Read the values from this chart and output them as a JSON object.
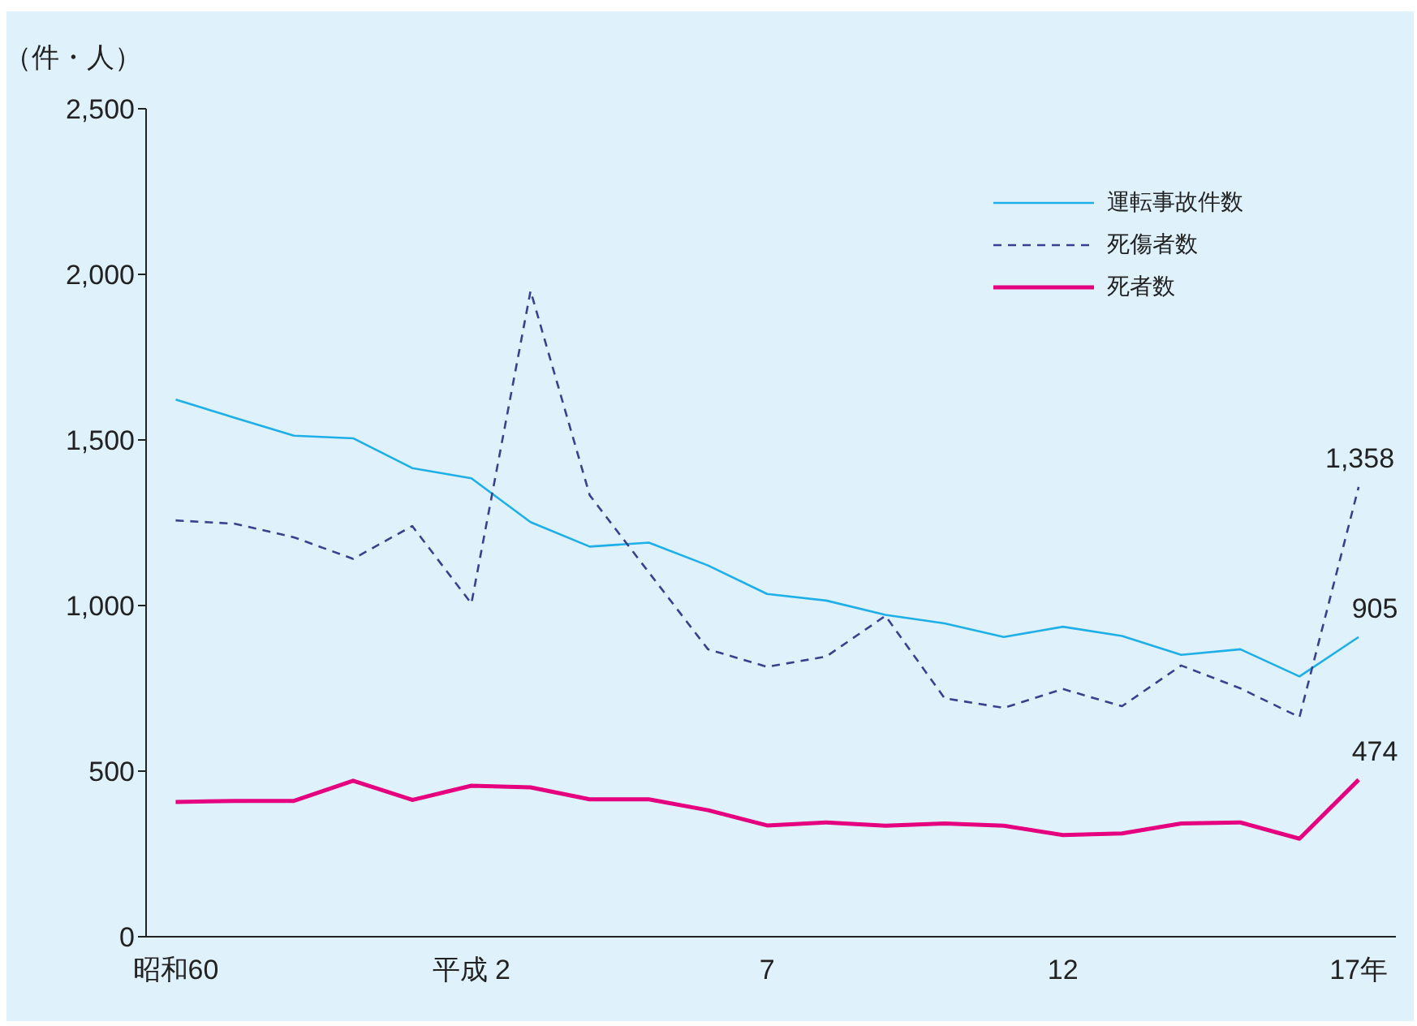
{
  "chart_data": {
    "type": "line",
    "ylabel": "（件・人）",
    "categories": [
      "昭和60",
      null,
      null,
      null,
      null,
      "平成 2",
      null,
      null,
      null,
      null,
      "7",
      null,
      null,
      null,
      null,
      "12",
      null,
      null,
      null,
      null,
      "17年"
    ],
    "series": [
      {
        "name": "運転事故件数",
        "color": "#1eaee8",
        "line_style": "solid",
        "values": [
          1622,
          1567,
          1513,
          1505,
          1415,
          1384,
          1252,
          1178,
          1190,
          1121,
          1035,
          1015,
          972,
          946,
          905,
          936,
          908,
          851,
          868,
          786,
          905
        ],
        "value_labels": [
          null,
          null,
          null,
          null,
          null,
          null,
          null,
          null,
          null,
          null,
          null,
          null,
          null,
          null,
          null,
          null,
          null,
          null,
          null,
          null,
          "905"
        ]
      },
      {
        "name": "死傷者数",
        "color": "#3b3f8f",
        "line_style": "dashed",
        "values": [
          1257,
          1247,
          1206,
          1141,
          1240,
          1006,
          1950,
          1333,
          1100,
          868,
          815,
          846,
          969,
          720,
          691,
          748,
          696,
          819,
          750,
          663,
          1358
        ],
        "value_labels": [
          null,
          null,
          null,
          null,
          null,
          null,
          null,
          null,
          null,
          null,
          null,
          null,
          null,
          null,
          null,
          null,
          null,
          null,
          null,
          null,
          "1,358"
        ]
      },
      {
        "name": "死者数",
        "color": "#e4007f",
        "line_style": "solid",
        "values": [
          407,
          410,
          410,
          471,
          413,
          456,
          451,
          415,
          415,
          382,
          336,
          345,
          335,
          342,
          335,
          307,
          312,
          342,
          345,
          296,
          474
        ],
        "value_labels": [
          null,
          null,
          null,
          null,
          null,
          null,
          null,
          null,
          null,
          null,
          null,
          null,
          null,
          null,
          null,
          null,
          null,
          null,
          null,
          null,
          "474"
        ]
      }
    ],
    "ylim": [
      0,
      2500
    ],
    "yticks": [
      0,
      {
        "value": 500,
        "label": "500"
      },
      {
        "value": 1000,
        "label": "1,000"
      },
      {
        "value": 1500,
        "label": "1,500"
      },
      {
        "value": 2000,
        "label": "2,000"
      },
      {
        "value": 2500,
        "label": "2,500"
      }
    ],
    "grid": false,
    "legend": "top right",
    "marker": "none"
  }
}
